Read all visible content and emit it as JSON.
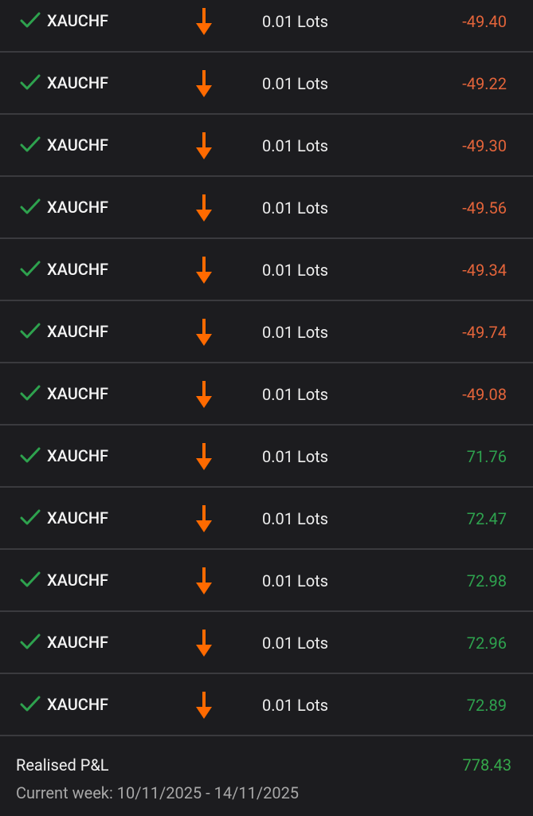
{
  "trades": [
    {
      "symbol": "XAUCHF",
      "direction": "sell",
      "volume": "0.01 Lots",
      "pnl": "-49.40"
    },
    {
      "symbol": "XAUCHF",
      "direction": "sell",
      "volume": "0.01 Lots",
      "pnl": "-49.22"
    },
    {
      "symbol": "XAUCHF",
      "direction": "sell",
      "volume": "0.01 Lots",
      "pnl": "-49.30"
    },
    {
      "symbol": "XAUCHF",
      "direction": "sell",
      "volume": "0.01 Lots",
      "pnl": "-49.56"
    },
    {
      "symbol": "XAUCHF",
      "direction": "sell",
      "volume": "0.01 Lots",
      "pnl": "-49.34"
    },
    {
      "symbol": "XAUCHF",
      "direction": "sell",
      "volume": "0.01 Lots",
      "pnl": "-49.74"
    },
    {
      "symbol": "XAUCHF",
      "direction": "sell",
      "volume": "0.01 Lots",
      "pnl": "-49.08"
    },
    {
      "symbol": "XAUCHF",
      "direction": "sell",
      "volume": "0.01 Lots",
      "pnl": "71.76"
    },
    {
      "symbol": "XAUCHF",
      "direction": "sell",
      "volume": "0.01 Lots",
      "pnl": "72.47"
    },
    {
      "symbol": "XAUCHF",
      "direction": "sell",
      "volume": "0.01 Lots",
      "pnl": "72.98"
    },
    {
      "symbol": "XAUCHF",
      "direction": "sell",
      "volume": "0.01 Lots",
      "pnl": "72.96"
    },
    {
      "symbol": "XAUCHF",
      "direction": "sell",
      "volume": "0.01 Lots",
      "pnl": "72.89"
    }
  ],
  "footer": {
    "label": "Realised P&L",
    "value": "778.43",
    "period": "Current week: 10/11/2025 - 14/11/2025"
  },
  "colors": {
    "negative": "#e3643a",
    "positive": "#2ea24e",
    "arrow": "#ff6a00",
    "check": "#2ea24e",
    "background": "#1c1c1f"
  }
}
